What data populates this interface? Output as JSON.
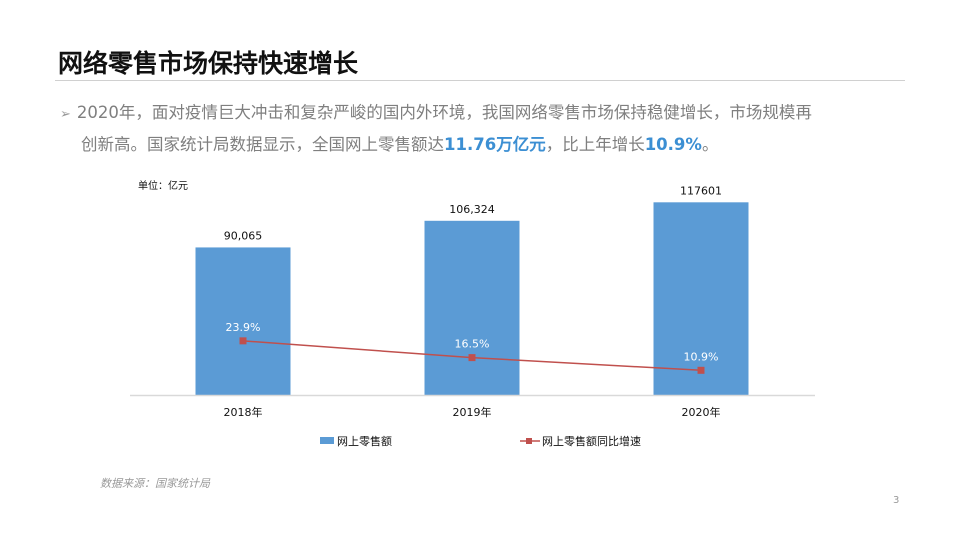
{
  "title": "网络零售市场保持快速增长",
  "bullet": {
    "icon": "arrow-bullet-icon",
    "line1": "2020年，面对疫情巨大冲击和复杂严峻的国内外环境，我国网络零售市场保持稳健增长，市场规模再",
    "line2_a": "创新高。国家统计局数据显示，全国网上零售额达",
    "line2_hl1": "11.76万亿元",
    "line2_b": "，比上年增长",
    "line2_hl2": "10.9%",
    "line2_c": "。",
    "highlight_color": "#3c8fd3"
  },
  "chart_data": {
    "type": "bar+line",
    "unit_label": "单位：亿元",
    "categories": [
      "2018年",
      "2019年",
      "2020年"
    ],
    "series": [
      {
        "name": "网上零售额",
        "type": "bar",
        "values": [
          90065,
          106324,
          117601
        ],
        "labels": [
          "90,065",
          "106,324",
          "117601"
        ],
        "color": "#5b9bd5",
        "ylim": [
          0,
          130000
        ]
      },
      {
        "name": "网上零售额同比增速",
        "type": "line",
        "values": [
          23.9,
          16.5,
          10.9
        ],
        "labels": [
          "23.9%",
          "16.5%",
          "10.9%"
        ],
        "color": "#c0504d",
        "ylim": [
          0,
          94
        ]
      }
    ],
    "legend": "bottom",
    "grid": false
  },
  "source": "数据来源：国家统计局",
  "page_number": "3"
}
